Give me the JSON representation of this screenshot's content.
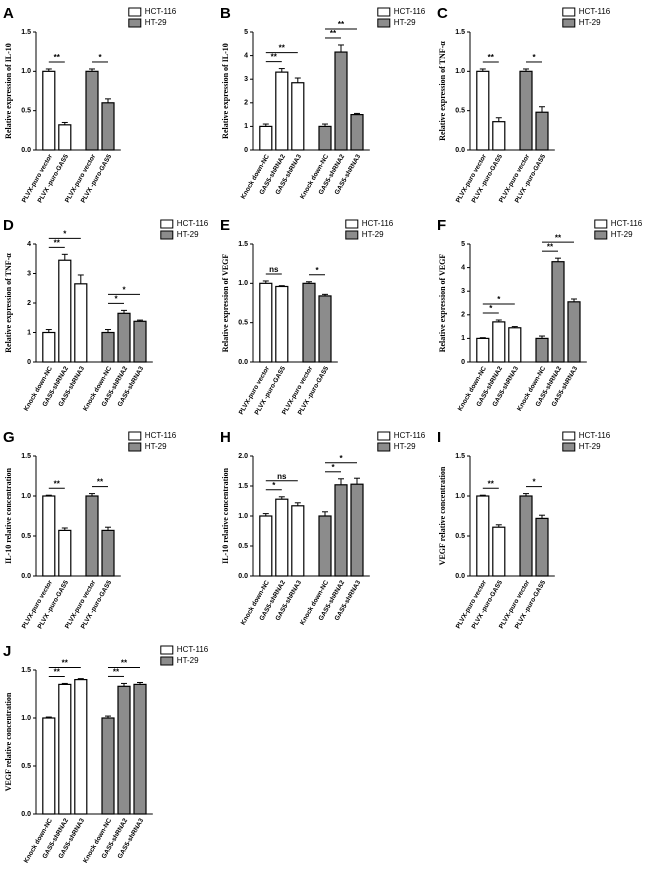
{
  "chart_data": [
    {
      "type": "bar",
      "panel": "A",
      "ylabel": "Relative expression of IL-10",
      "categories": [
        "PLVX-puro vector",
        "PLVX -puro-GAS5",
        "PLVX-puro vector",
        "PLVX -puro-GAS5"
      ],
      "series": [
        {
          "name": "HCT-116",
          "color": "#ffffff",
          "values": [
            1.0,
            0.32,
            null,
            null
          ],
          "errors": [
            0.03,
            0.03,
            null,
            null
          ]
        },
        {
          "name": "HT-29",
          "color": "#8c8c8c",
          "values": [
            null,
            null,
            1.0,
            0.6
          ],
          "errors": [
            null,
            null,
            0.03,
            0.05
          ]
        }
      ],
      "ylim": [
        0,
        1.5
      ],
      "yticks": [
        {
          "value": 0,
          "label": "0.0"
        },
        0.5,
        {
          "value": 1,
          "label": "1.0"
        },
        1.5
      ],
      "annotations": [
        {
          "text": "**",
          "from": 0,
          "to": 1
        },
        {
          "text": "*",
          "from": 2,
          "to": 3
        }
      ]
    },
    {
      "type": "bar",
      "panel": "B",
      "ylabel": "Relative expression of IL-10",
      "categories": [
        "Knock down-NC",
        "GAS5-shRNA2",
        "GAS5-shRNA3",
        "Knock down-NC",
        "GAS5-shRNA2",
        "GAS5-shRNA3"
      ],
      "series": [
        {
          "name": "HCT-116",
          "color": "#ffffff",
          "values": [
            1.0,
            3.3,
            2.85,
            null,
            null,
            null
          ],
          "errors": [
            0.1,
            0.15,
            0.2,
            null,
            null,
            null
          ]
        },
        {
          "name": "HT-29",
          "color": "#8c8c8c",
          "values": [
            null,
            null,
            null,
            1.0,
            4.15,
            1.5
          ],
          "errors": [
            null,
            null,
            null,
            0.1,
            0.3,
            0.05
          ]
        }
      ],
      "ylim": [
        0,
        5
      ],
      "yticks": [
        0,
        1,
        2,
        3,
        4,
        5
      ],
      "annotations": [
        {
          "text": "**",
          "from": 0,
          "to": 1
        },
        {
          "text": "**",
          "from": 0,
          "to": 2
        },
        {
          "text": "**",
          "from": 3,
          "to": 4
        },
        {
          "text": "**",
          "from": 3,
          "to": 5
        }
      ]
    },
    {
      "type": "bar",
      "panel": "C",
      "ylabel": "Relative expression of TNF-α",
      "categories": [
        "PLVX-puro vector",
        "PLVX -puro-GAS5",
        "PLVX-puro vector",
        "PLVX -puro-GAS5"
      ],
      "series": [
        {
          "name": "HCT-116",
          "color": "#ffffff",
          "values": [
            1.0,
            0.36,
            null,
            null
          ],
          "errors": [
            0.03,
            0.05,
            null,
            null
          ]
        },
        {
          "name": "HT-29",
          "color": "#8c8c8c",
          "values": [
            null,
            null,
            1.0,
            0.48
          ],
          "errors": [
            null,
            null,
            0.03,
            0.07
          ]
        }
      ],
      "ylim": [
        0,
        1.5
      ],
      "yticks": [
        {
          "value": 0,
          "label": "0.0"
        },
        0.5,
        {
          "value": 1,
          "label": "1.0"
        },
        1.5
      ],
      "annotations": [
        {
          "text": "**",
          "from": 0,
          "to": 1
        },
        {
          "text": "*",
          "from": 2,
          "to": 3
        }
      ]
    },
    {
      "type": "bar",
      "panel": "D",
      "ylabel": "Relative expression of TNF-α",
      "categories": [
        "Knock down-NC",
        "GAS5-shRNA2",
        "GAS5-shRNA3",
        "Knock down-NC",
        "GAS5-shRNA2",
        "GAS5-shRNA3"
      ],
      "series": [
        {
          "name": "HCT-116",
          "color": "#ffffff",
          "values": [
            1.0,
            3.45,
            2.65,
            null,
            null,
            null
          ],
          "errors": [
            0.1,
            0.2,
            0.3,
            null,
            null,
            null
          ]
        },
        {
          "name": "HT-29",
          "color": "#8c8c8c",
          "values": [
            null,
            null,
            null,
            1.0,
            1.65,
            1.38
          ],
          "errors": [
            null,
            null,
            null,
            0.1,
            0.1,
            0.04
          ]
        }
      ],
      "ylim": [
        0,
        4
      ],
      "yticks": [
        0,
        1,
        2,
        3,
        4
      ],
      "annotations": [
        {
          "text": "**",
          "from": 0,
          "to": 1
        },
        {
          "text": "*",
          "from": 0,
          "to": 2
        },
        {
          "text": "*",
          "from": 3,
          "to": 4
        },
        {
          "text": "*",
          "from": 3,
          "to": 5
        }
      ]
    },
    {
      "type": "bar",
      "panel": "E",
      "ylabel": "Relative expression of VEGF",
      "categories": [
        "PLVX-puro vector",
        "PLVX -puro-GAS5",
        "PLVX-puro vector",
        "PLVX -puro-GAS5"
      ],
      "series": [
        {
          "name": "HCT-116",
          "color": "#ffffff",
          "values": [
            1.0,
            0.96,
            null,
            null
          ],
          "errors": [
            0.03,
            0.01,
            null,
            null
          ]
        },
        {
          "name": "HT-29",
          "color": "#8c8c8c",
          "values": [
            null,
            null,
            1.0,
            0.84
          ],
          "errors": [
            null,
            null,
            0.02,
            0.02
          ]
        }
      ],
      "ylim": [
        0,
        1.5
      ],
      "yticks": [
        {
          "value": 0,
          "label": "0.0"
        },
        0.5,
        {
          "value": 1,
          "label": "1.0"
        },
        1.5
      ],
      "annotations": [
        {
          "text": "ns",
          "from": 0,
          "to": 1
        },
        {
          "text": "*",
          "from": 2,
          "to": 3
        }
      ]
    },
    {
      "type": "bar",
      "panel": "F",
      "ylabel": "Relative expression of VEGF",
      "categories": [
        "Knock down-NC",
        "GAS5-shRNA2",
        "GAS5-shRNA3",
        "Knock down-NC",
        "GAS5-shRNA2",
        "GAS5-shRNA3"
      ],
      "series": [
        {
          "name": "HCT-116",
          "color": "#ffffff",
          "values": [
            1.0,
            1.7,
            1.45,
            null,
            null,
            null
          ],
          "errors": [
            0.03,
            0.08,
            0.05,
            null,
            null,
            null
          ]
        },
        {
          "name": "HT-29",
          "color": "#8c8c8c",
          "values": [
            null,
            null,
            null,
            1.0,
            4.25,
            2.55
          ],
          "errors": [
            null,
            null,
            null,
            0.1,
            0.15,
            0.12
          ]
        }
      ],
      "ylim": [
        0,
        5
      ],
      "yticks": [
        0,
        1,
        2,
        3,
        4,
        5
      ],
      "annotations": [
        {
          "text": "*",
          "from": 0,
          "to": 1
        },
        {
          "text": "*",
          "from": 0,
          "to": 2
        },
        {
          "text": "**",
          "from": 3,
          "to": 4
        },
        {
          "text": "**",
          "from": 3,
          "to": 5
        }
      ]
    },
    {
      "type": "bar",
      "panel": "G",
      "ylabel": "IL-10 relative concentration",
      "categories": [
        "PLVX-puro vector",
        "PLVX -puro-GAS5",
        "PLVX-puro vector",
        "PLVX -puro-GAS5"
      ],
      "series": [
        {
          "name": "HCT-116",
          "color": "#ffffff",
          "values": [
            1.0,
            0.57,
            null,
            null
          ],
          "errors": [
            0.01,
            0.03,
            null,
            null
          ]
        },
        {
          "name": "HT-29",
          "color": "#8c8c8c",
          "values": [
            null,
            null,
            1.0,
            0.57
          ],
          "errors": [
            null,
            null,
            0.03,
            0.04
          ]
        }
      ],
      "ylim": [
        0,
        1.5
      ],
      "yticks": [
        {
          "value": 0,
          "label": "0.0"
        },
        0.5,
        {
          "value": 1,
          "label": "1.0"
        },
        1.5
      ],
      "annotations": [
        {
          "text": "**",
          "from": 0,
          "to": 1
        },
        {
          "text": "**",
          "from": 2,
          "to": 3
        }
      ]
    },
    {
      "type": "bar",
      "panel": "H",
      "ylabel": "IL-10 relative concentration",
      "categories": [
        "Knock down-NC",
        "GAS5-shRNA2",
        "GAS5-shRNA3",
        "Knock down-NC",
        "GAS5-shRNA2",
        "GAS5-shRNA3"
      ],
      "series": [
        {
          "name": "HCT-116",
          "color": "#ffffff",
          "values": [
            1.0,
            1.28,
            1.17,
            null,
            null,
            null
          ],
          "errors": [
            0.04,
            0.04,
            0.05,
            null,
            null,
            null
          ]
        },
        {
          "name": "HT-29",
          "color": "#8c8c8c",
          "values": [
            null,
            null,
            null,
            1.0,
            1.52,
            1.53
          ],
          "errors": [
            null,
            null,
            null,
            0.07,
            0.1,
            0.1
          ]
        }
      ],
      "ylim": [
        0,
        2
      ],
      "yticks": [
        {
          "value": 0,
          "label": "0.0"
        },
        0.5,
        {
          "value": 1,
          "label": "1.0"
        },
        1.5,
        {
          "value": 2,
          "label": "2.0"
        }
      ],
      "annotations": [
        {
          "text": "*",
          "from": 0,
          "to": 1
        },
        {
          "text": "ns",
          "from": 0,
          "to": 2
        },
        {
          "text": "*",
          "from": 3,
          "to": 4
        },
        {
          "text": "*",
          "from": 3,
          "to": 5
        }
      ]
    },
    {
      "type": "bar",
      "panel": "I",
      "ylabel": "VEGF relative concentration",
      "categories": [
        "PLVX-puro vector",
        "PLVX -puro-GAS5",
        "PLVX-puro vector",
        "PLVX -puro-GAS5"
      ],
      "series": [
        {
          "name": "HCT-116",
          "color": "#ffffff",
          "values": [
            1.0,
            0.61,
            null,
            null
          ],
          "errors": [
            0.01,
            0.03,
            null,
            null
          ]
        },
        {
          "name": "HT-29",
          "color": "#8c8c8c",
          "values": [
            null,
            null,
            1.0,
            0.72
          ],
          "errors": [
            null,
            null,
            0.03,
            0.04
          ]
        }
      ],
      "ylim": [
        0,
        1.5
      ],
      "yticks": [
        {
          "value": 0,
          "label": "0.0"
        },
        0.5,
        {
          "value": 1,
          "label": "1.0"
        },
        1.5
      ],
      "annotations": [
        {
          "text": "**",
          "from": 0,
          "to": 1
        },
        {
          "text": "*",
          "from": 2,
          "to": 3
        }
      ]
    },
    {
      "type": "bar",
      "panel": "J",
      "ylabel": "VEGF relative concentration",
      "categories": [
        "Knock down-NC",
        "GAS5-shRNA2",
        "GAS5-shRNA3",
        "Knock down-NC",
        "GAS5-shRNA2",
        "GAS5-shRNA3"
      ],
      "series": [
        {
          "name": "HCT-116",
          "color": "#ffffff",
          "values": [
            1.0,
            1.35,
            1.4,
            null,
            null,
            null
          ],
          "errors": [
            0.01,
            0.01,
            0.01,
            null,
            null,
            null
          ]
        },
        {
          "name": "HT-29",
          "color": "#8c8c8c",
          "values": [
            null,
            null,
            null,
            1.0,
            1.33,
            1.35
          ],
          "errors": [
            null,
            null,
            null,
            0.02,
            0.03,
            0.02
          ]
        }
      ],
      "ylim": [
        0,
        1.5
      ],
      "yticks": [
        {
          "value": 0,
          "label": "0.0"
        },
        0.5,
        {
          "value": 1,
          "label": "1.0"
        },
        1.5
      ],
      "annotations": [
        {
          "text": "**",
          "from": 0,
          "to": 1
        },
        {
          "text": "**",
          "from": 0,
          "to": 2
        },
        {
          "text": "**",
          "from": 3,
          "to": 4
        },
        {
          "text": "**",
          "from": 3,
          "to": 5
        }
      ]
    }
  ]
}
